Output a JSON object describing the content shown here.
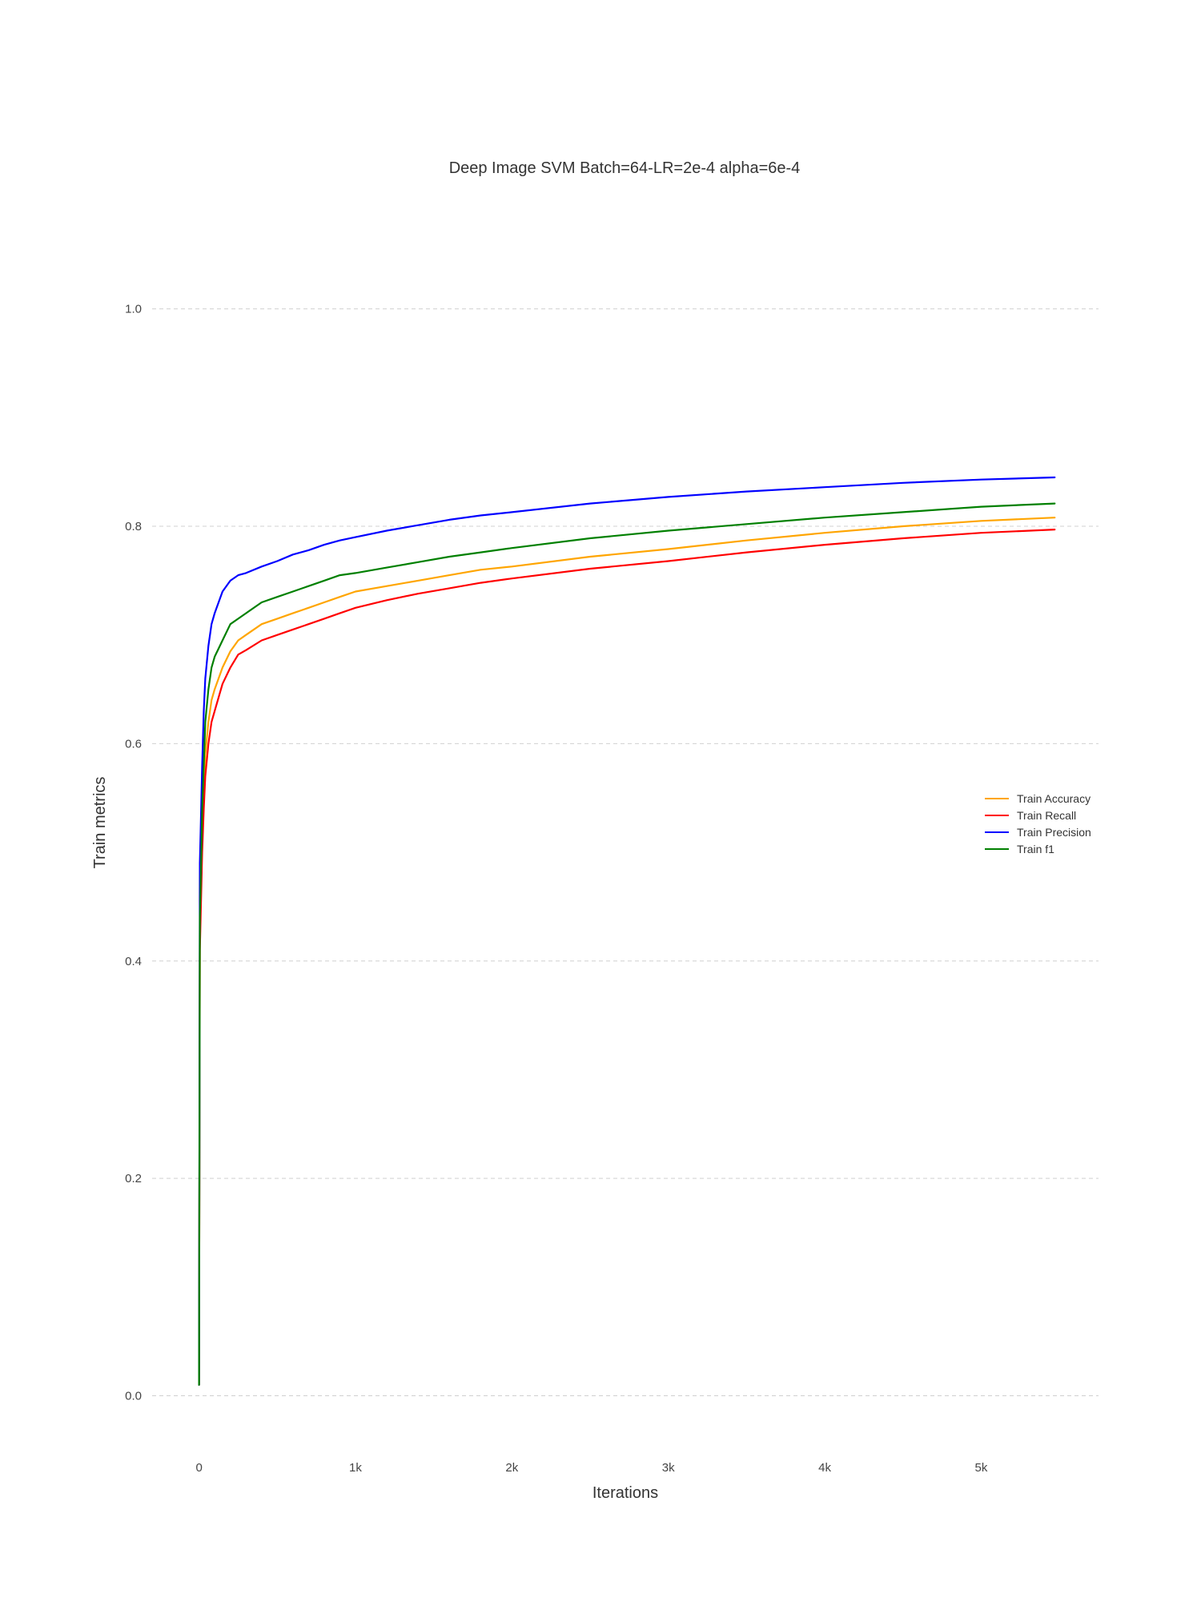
{
  "chart_data": {
    "type": "line",
    "title": "Deep Image SVM Batch=64-LR=2e-4 alpha=6e-4",
    "xlabel": "Iterations",
    "ylabel": "Train metrics",
    "xlim": [
      -300,
      5750
    ],
    "ylim": [
      -0.035,
      1.1
    ],
    "x_ticks": [
      {
        "value": 0,
        "label": "0"
      },
      {
        "value": 1000,
        "label": "1k"
      },
      {
        "value": 2000,
        "label": "2k"
      },
      {
        "value": 3000,
        "label": "3k"
      },
      {
        "value": 4000,
        "label": "4k"
      },
      {
        "value": 5000,
        "label": "5k"
      }
    ],
    "y_ticks": [
      {
        "value": 0.0,
        "label": "0.0"
      },
      {
        "value": 0.2,
        "label": "0.2"
      },
      {
        "value": 0.4,
        "label": "0.4"
      },
      {
        "value": 0.6,
        "label": "0.6"
      },
      {
        "value": 0.8,
        "label": "0.8"
      },
      {
        "value": 1.0,
        "label": "1.0"
      }
    ],
    "grid": "horizontal dashed",
    "legend_position": "right",
    "x": [
      0,
      5,
      10,
      20,
      30,
      40,
      60,
      80,
      100,
      150,
      200,
      250,
      300,
      400,
      500,
      600,
      700,
      800,
      900,
      1000,
      1200,
      1400,
      1600,
      1800,
      2000,
      2500,
      3000,
      3500,
      4000,
      4500,
      5000,
      5470
    ],
    "series": [
      {
        "name": "Train Accuracy",
        "color": "#ffa500",
        "values": [
          0.01,
          0.43,
          0.46,
          0.52,
          0.56,
          0.59,
          0.62,
          0.64,
          0.65,
          0.67,
          0.685,
          0.695,
          0.7,
          0.71,
          0.715,
          0.72,
          0.725,
          0.73,
          0.735,
          0.74,
          0.745,
          0.75,
          0.755,
          0.76,
          0.763,
          0.772,
          0.779,
          0.787,
          0.794,
          0.8,
          0.805,
          0.808
        ]
      },
      {
        "name": "Train Recall",
        "color": "#ff0000",
        "values": [
          0.01,
          0.41,
          0.44,
          0.5,
          0.54,
          0.57,
          0.6,
          0.62,
          0.63,
          0.655,
          0.67,
          0.682,
          0.686,
          0.695,
          0.7,
          0.705,
          0.71,
          0.715,
          0.72,
          0.725,
          0.732,
          0.738,
          0.743,
          0.748,
          0.752,
          0.761,
          0.768,
          0.776,
          0.783,
          0.789,
          0.794,
          0.797
        ]
      },
      {
        "name": "Train Precision",
        "color": "#0000ff",
        "values": [
          0.01,
          0.49,
          0.52,
          0.58,
          0.63,
          0.66,
          0.69,
          0.71,
          0.72,
          0.74,
          0.75,
          0.755,
          0.757,
          0.763,
          0.768,
          0.774,
          0.778,
          0.783,
          0.787,
          0.79,
          0.796,
          0.801,
          0.806,
          0.81,
          0.813,
          0.821,
          0.827,
          0.832,
          0.836,
          0.84,
          0.843,
          0.845
        ]
      },
      {
        "name": "Train f1",
        "color": "#008000",
        "values": [
          0.01,
          0.44,
          0.47,
          0.54,
          0.58,
          0.62,
          0.65,
          0.67,
          0.68,
          0.695,
          0.71,
          0.715,
          0.72,
          0.73,
          0.735,
          0.74,
          0.745,
          0.75,
          0.755,
          0.757,
          0.762,
          0.767,
          0.772,
          0.776,
          0.78,
          0.789,
          0.796,
          0.802,
          0.808,
          0.813,
          0.818,
          0.821
        ]
      }
    ]
  }
}
